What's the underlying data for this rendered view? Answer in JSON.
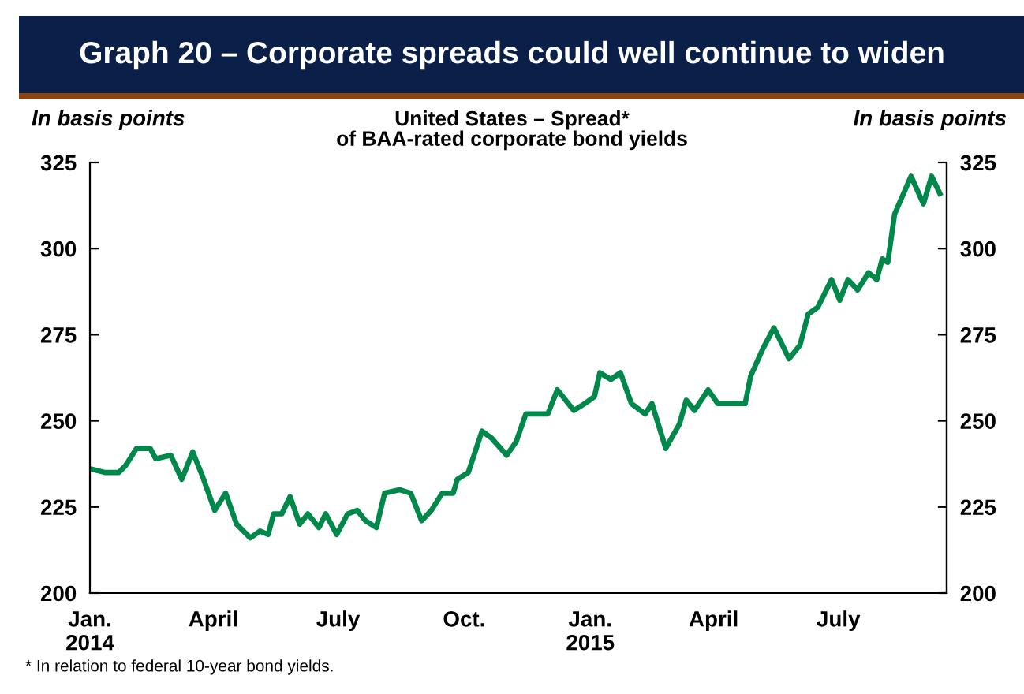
{
  "chart_data": {
    "type": "line",
    "title": "Graph 20 – Corporate spreads could well continue to widen",
    "subtitle": "United States – Spread*\nof BAA-rated corporate bond yields",
    "ylabel": "In basis points",
    "y2label": "In basis points",
    "annotations": [
      "* In relation to federal 10-year bond yields."
    ],
    "x": [
      "2014-01-02",
      "2014-01-12",
      "2014-01-22",
      "2014-01-27",
      "2014-02-04",
      "2014-02-14",
      "2014-02-18",
      "2014-03-01",
      "2014-03-09",
      "2014-03-17",
      "2014-03-24",
      "2014-04-02",
      "2014-04-10",
      "2014-04-18",
      "2014-04-28",
      "2014-05-05",
      "2014-05-11",
      "2014-05-15",
      "2014-05-21",
      "2014-05-27",
      "2014-06-03",
      "2014-06-09",
      "2014-06-17",
      "2014-06-22",
      "2014-06-30",
      "2014-07-08",
      "2014-07-15",
      "2014-07-21",
      "2014-07-29",
      "2014-08-04",
      "2014-08-15",
      "2014-08-23",
      "2014-08-31",
      "2014-09-07",
      "2014-09-15",
      "2014-09-23",
      "2014-09-26",
      "2014-10-04",
      "2014-10-14",
      "2014-10-21",
      "2014-11-01",
      "2014-11-08",
      "2014-11-15",
      "2014-11-22",
      "2014-12-01",
      "2014-12-08",
      "2014-12-20",
      "2014-12-28",
      "2015-01-04",
      "2015-01-08",
      "2015-01-16",
      "2015-01-23",
      "2015-01-31",
      "2015-02-10",
      "2015-02-15",
      "2015-02-25",
      "2015-03-07",
      "2015-03-12",
      "2015-03-18",
      "2015-03-28",
      "2015-04-04",
      "2015-04-12",
      "2015-04-24",
      "2015-04-28",
      "2015-05-07",
      "2015-05-15",
      "2015-05-26",
      "2015-06-03",
      "2015-06-09",
      "2015-06-16",
      "2015-06-26",
      "2015-07-02",
      "2015-07-08",
      "2015-07-15",
      "2015-07-23",
      "2015-07-29",
      "2015-08-02",
      "2015-08-06",
      "2015-08-11",
      "2015-08-23",
      "2015-09-01",
      "2015-09-07",
      "2015-09-13"
    ],
    "series": [
      {
        "color": "#00874a",
        "values": [
          236,
          235,
          235,
          237,
          242,
          242,
          239,
          240,
          233,
          241,
          234,
          224,
          229,
          220,
          216,
          218,
          217,
          223,
          223,
          228,
          220,
          223,
          219,
          223,
          217,
          223,
          224,
          221,
          219,
          229,
          230,
          229,
          221,
          224,
          229,
          229,
          233,
          235,
          247,
          245,
          240,
          244,
          252,
          252,
          252,
          259,
          253,
          255,
          257,
          264,
          262,
          264,
          255,
          252,
          255,
          242,
          249,
          256,
          253,
          259,
          255,
          255,
          255,
          263,
          271,
          277,
          268,
          272,
          281,
          283,
          291,
          285,
          291,
          288,
          293,
          291,
          297,
          296,
          310,
          321,
          313,
          321,
          316
        ]
      }
    ],
    "xlim": [
      "2014-01-01",
      "2015-09-18"
    ],
    "xticks": [
      {
        "value": "2014-01-01",
        "label": "Jan.\n2014"
      },
      {
        "value": "2014-04-01",
        "label": "April"
      },
      {
        "value": "2014-07-01",
        "label": "July"
      },
      {
        "value": "2014-10-01",
        "label": "Oct."
      },
      {
        "value": "2015-01-01",
        "label": "Jan.\n2015"
      },
      {
        "value": "2015-04-01",
        "label": "April"
      },
      {
        "value": "2015-07-01",
        "label": "July"
      }
    ],
    "ylim": [
      200,
      325
    ],
    "yticks": [
      200,
      225,
      250,
      275,
      300,
      325
    ],
    "y2lim": [
      200,
      325
    ],
    "y2ticks": [
      200,
      225,
      250,
      275,
      300,
      325
    ]
  }
}
